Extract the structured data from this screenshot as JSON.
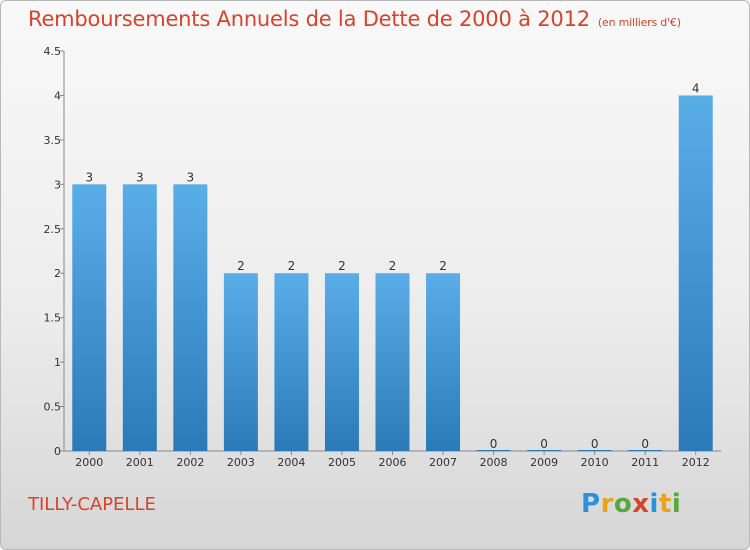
{
  "chart_data": {
    "type": "bar",
    "title": "Remboursements Annuels de la Dette de 2000 à 2012",
    "unit_note": "(en milliers d'€)",
    "categories": [
      "2000",
      "2001",
      "2002",
      "2003",
      "2004",
      "2005",
      "2006",
      "2007",
      "2008",
      "2009",
      "2010",
      "2011",
      "2012"
    ],
    "values": [
      3,
      3,
      3,
      2,
      2,
      2,
      2,
      2,
      0,
      0,
      0,
      0,
      4
    ],
    "data_labels": [
      "3",
      "3",
      "3",
      "2",
      "2",
      "2",
      "2",
      "2",
      "0",
      "0",
      "0",
      "0",
      "4"
    ],
    "ylim": [
      0,
      4.5
    ],
    "yticks": [
      0,
      0.5,
      1,
      1.5,
      2,
      2.5,
      3,
      3.5,
      4,
      4.5
    ],
    "ytick_labels": [
      "0",
      "0.5",
      "1",
      "1.5",
      "2",
      "2.5",
      "3",
      "3.5",
      "4",
      "4.5"
    ],
    "xlabel": "",
    "ylabel": "",
    "grid": false,
    "bar_color_top": "#5aaee8",
    "bar_color_bottom": "#2a7ab8"
  },
  "footer": {
    "place_name": "TILLY-CAPELLE",
    "logo_letters": [
      "P",
      "r",
      "o",
      "x",
      "i",
      "t",
      "i"
    ],
    "logo_colors": [
      "#2f8fd8",
      "#e8a21c",
      "#57a83a",
      "#d7432b",
      "#2f8fd8",
      "#e8a21c",
      "#57a83a"
    ]
  }
}
